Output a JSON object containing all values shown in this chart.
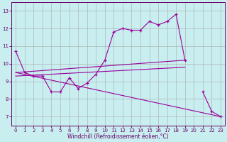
{
  "background_color": "#c8eef0",
  "line_color": "#990099",
  "grid_color": "#aaaaaa",
  "xlabel": "Windchill (Refroidissement éolien,°C)",
  "hours": [
    0,
    1,
    2,
    3,
    4,
    5,
    6,
    7,
    8,
    9,
    10,
    11,
    12,
    13,
    14,
    15,
    16,
    17,
    18,
    19,
    20,
    21,
    22,
    23
  ],
  "main_curve": [
    10.7,
    9.5,
    9.3,
    9.3,
    8.4,
    8.4,
    9.2,
    8.6,
    8.9,
    9.4,
    10.2,
    11.8,
    12.0,
    11.9,
    11.9,
    12.4,
    12.2,
    12.4,
    12.8,
    10.2,
    null,
    8.4,
    7.3,
    7.0
  ],
  "upper_line": [
    [
      0,
      9.5
    ],
    [
      19,
      10.2
    ]
  ],
  "mid_line": [
    [
      0,
      9.3
    ],
    [
      19,
      9.8
    ]
  ],
  "lower_line": [
    [
      0,
      9.5
    ],
    [
      23,
      7.0
    ]
  ],
  "ylim": [
    6.5,
    13.5
  ],
  "xlim": [
    -0.5,
    23.5
  ],
  "yticks": [
    7,
    8,
    9,
    10,
    11,
    12,
    13
  ],
  "xticks": [
    0,
    1,
    2,
    3,
    4,
    5,
    6,
    7,
    8,
    9,
    10,
    11,
    12,
    13,
    14,
    15,
    16,
    17,
    18,
    19,
    20,
    21,
    22,
    23
  ],
  "tick_fontsize": 5.0,
  "xlabel_fontsize": 5.5,
  "tick_color": "#660066",
  "spine_color": "#660066"
}
